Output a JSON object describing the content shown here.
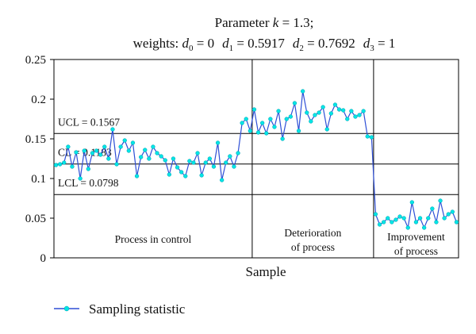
{
  "chart_data": {
    "type": "line",
    "title_line1_prefix": "Parameter ",
    "title_line1_var": "k",
    "title_line1_suffix": " = 1.3;",
    "title_line2": {
      "prefix": "weights: ",
      "terms": [
        {
          "sym": "d",
          "sub": "0",
          "val": " = 0"
        },
        {
          "sym": "d",
          "sub": "1",
          "val": " = 0.5917"
        },
        {
          "sym": "d",
          "sub": "2",
          "val": " = 0.7692"
        },
        {
          "sym": "d",
          "sub": "3",
          "val": " = 1"
        }
      ]
    },
    "xlabel": "Sample",
    "ylabel": "",
    "ylim": [
      0,
      0.25
    ],
    "yticks": [
      "0",
      "0.05",
      "0.1",
      "0.15",
      "0.2",
      "0.25"
    ],
    "ytick_values": [
      0,
      0.05,
      0.1,
      0.15,
      0.2,
      0.25
    ],
    "xlim": [
      1,
      100
    ],
    "grid": false,
    "control_lines": [
      {
        "label": "UCL = 0.1567",
        "value": 0.1567
      },
      {
        "label": "CL = 0.1183",
        "value": 0.1183
      },
      {
        "label": "LCL = 0.0798",
        "value": 0.0798
      }
    ],
    "phase_boundaries": [
      49.5,
      79.5
    ],
    "phase_labels": [
      {
        "lines": [
          "Process in control"
        ],
        "x_center": 25
      },
      {
        "lines": [
          "Deterioration",
          "of process"
        ],
        "x_center": 64.5
      },
      {
        "lines": [
          "Improvement",
          "of process"
        ],
        "x_center": 90
      }
    ],
    "series": [
      {
        "name": "Sampling statistic",
        "color": "#2e4fd6",
        "marker_color": "#00e5e5",
        "x": [
          1,
          2,
          3,
          4,
          5,
          6,
          7,
          8,
          9,
          10,
          11,
          12,
          13,
          14,
          15,
          16,
          17,
          18,
          19,
          20,
          21,
          22,
          23,
          24,
          25,
          26,
          27,
          28,
          29,
          30,
          31,
          32,
          33,
          34,
          35,
          36,
          37,
          38,
          39,
          40,
          41,
          42,
          43,
          44,
          45,
          46,
          47,
          48,
          49,
          50,
          51,
          52,
          53,
          54,
          55,
          56,
          57,
          58,
          59,
          60,
          61,
          62,
          63,
          64,
          65,
          66,
          67,
          68,
          69,
          70,
          71,
          72,
          73,
          74,
          75,
          76,
          77,
          78,
          79,
          80,
          81,
          82,
          83,
          84,
          85,
          86,
          87,
          88,
          89,
          90,
          91,
          92,
          93,
          94,
          95,
          96,
          97,
          98,
          99,
          100
        ],
        "values": [
          0.117,
          0.118,
          0.12,
          0.14,
          0.115,
          0.133,
          0.1,
          0.135,
          0.112,
          0.132,
          0.135,
          0.13,
          0.14,
          0.125,
          0.162,
          0.118,
          0.14,
          0.148,
          0.135,
          0.145,
          0.103,
          0.127,
          0.136,
          0.125,
          0.14,
          0.132,
          0.128,
          0.123,
          0.105,
          0.125,
          0.114,
          0.108,
          0.103,
          0.122,
          0.12,
          0.132,
          0.104,
          0.12,
          0.125,
          0.115,
          0.145,
          0.098,
          0.12,
          0.128,
          0.115,
          0.132,
          0.17,
          0.175,
          0.16,
          0.187,
          0.158,
          0.17,
          0.157,
          0.175,
          0.165,
          0.185,
          0.15,
          0.175,
          0.178,
          0.195,
          0.16,
          0.21,
          0.183,
          0.172,
          0.18,
          0.183,
          0.19,
          0.162,
          0.182,
          0.193,
          0.187,
          0.186,
          0.175,
          0.185,
          0.178,
          0.18,
          0.185,
          0.153,
          0.152,
          0.055,
          0.042,
          0.045,
          0.05,
          0.045,
          0.048,
          0.052,
          0.05,
          0.038,
          0.07,
          0.045,
          0.05,
          0.038,
          0.05,
          0.062,
          0.045,
          0.072,
          0.05,
          0.055,
          0.058,
          0.045
        ]
      }
    ]
  }
}
